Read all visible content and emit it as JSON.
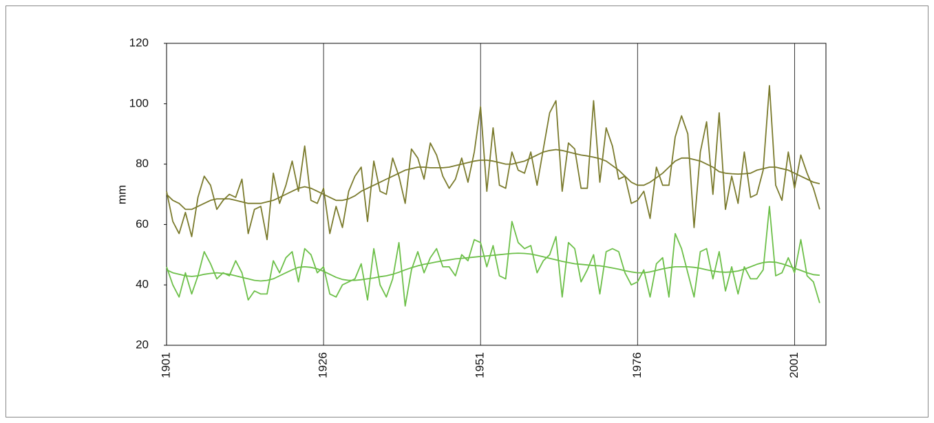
{
  "chart_data": {
    "type": "line",
    "ylabel": "mm",
    "x": [
      1901,
      1902,
      1903,
      1904,
      1905,
      1906,
      1907,
      1908,
      1909,
      1910,
      1911,
      1912,
      1913,
      1914,
      1915,
      1916,
      1917,
      1918,
      1919,
      1920,
      1921,
      1922,
      1923,
      1924,
      1925,
      1926,
      1927,
      1928,
      1929,
      1930,
      1931,
      1932,
      1933,
      1934,
      1935,
      1936,
      1937,
      1938,
      1939,
      1940,
      1941,
      1942,
      1943,
      1944,
      1945,
      1946,
      1947,
      1948,
      1949,
      1950,
      1951,
      1952,
      1953,
      1954,
      1955,
      1956,
      1957,
      1958,
      1959,
      1960,
      1961,
      1962,
      1963,
      1964,
      1965,
      1966,
      1967,
      1968,
      1969,
      1970,
      1971,
      1972,
      1973,
      1974,
      1975,
      1976,
      1977,
      1978,
      1979,
      1980,
      1981,
      1982,
      1983,
      1984,
      1985,
      1986,
      1987,
      1988,
      1989,
      1990,
      1991,
      1992,
      1993,
      1994,
      1995,
      1996,
      1997,
      1998,
      1999,
      2000,
      2001,
      2002,
      2003,
      2004,
      2005
    ],
    "series": [
      {
        "color": "#7a7a2c",
        "values": [
          71,
          61,
          57,
          64,
          56,
          69,
          76,
          73,
          65,
          68,
          70,
          69,
          75,
          57,
          65,
          66,
          55,
          77,
          67,
          73,
          81,
          71,
          86,
          68,
          67,
          72,
          57,
          66,
          59,
          71,
          76,
          79,
          61,
          81,
          71,
          70,
          82,
          76,
          67,
          85,
          82,
          75,
          87,
          83,
          76,
          72,
          75,
          82,
          74,
          84,
          99,
          71,
          92,
          73,
          72,
          84,
          78,
          77,
          84,
          73,
          85,
          97,
          101,
          71,
          87,
          85,
          72,
          72,
          101,
          74,
          92,
          86,
          75,
          76,
          67,
          68,
          71,
          62,
          79,
          73,
          73,
          89,
          96,
          90,
          59,
          84,
          94,
          70,
          97,
          65,
          76,
          67,
          84,
          69,
          70,
          78,
          106,
          73,
          68,
          84,
          72,
          83,
          77,
          72,
          65
        ]
      },
      {
        "color": "#7a7a2c",
        "values": [
          70,
          68,
          67,
          65,
          65,
          66,
          67,
          68,
          68.5,
          68.5,
          68.5,
          68,
          67.5,
          67,
          67,
          67,
          67.5,
          68,
          69,
          70,
          71,
          72,
          72.5,
          72,
          71,
          70,
          69,
          68,
          68,
          68.5,
          69.5,
          71,
          72,
          73,
          74,
          75,
          76,
          77,
          78,
          78.5,
          79,
          79,
          78.8,
          78.8,
          78.8,
          79,
          79.5,
          80,
          80.5,
          81,
          81.3,
          81.3,
          81,
          80.5,
          80,
          80,
          80.5,
          81,
          82,
          83,
          84,
          84.5,
          84.8,
          84.5,
          84,
          83.5,
          83,
          82.7,
          82.3,
          81.8,
          81,
          79.5,
          78,
          76,
          74,
          73,
          73,
          74,
          75.5,
          77,
          79,
          81,
          82,
          82,
          81.5,
          81,
          80,
          79,
          77.5,
          77,
          76.8,
          76.7,
          76.8,
          77,
          78,
          78.5,
          79,
          79,
          78.5,
          78,
          77,
          76,
          75,
          74,
          73.5
        ]
      },
      {
        "color": "#6cbf48",
        "values": [
          46,
          40,
          36,
          44,
          37,
          43,
          51,
          47,
          42,
          44,
          43,
          48,
          44,
          35,
          38,
          37,
          37,
          48,
          44,
          49,
          51,
          41,
          52,
          50,
          44,
          46,
          37,
          36,
          40,
          41,
          42,
          47,
          35,
          52,
          40,
          36,
          42,
          54,
          33,
          45,
          51,
          44,
          49,
          52,
          46,
          46,
          43,
          50,
          48,
          55,
          54,
          46,
          53,
          43,
          42,
          61,
          54,
          52,
          53,
          44,
          48,
          50,
          56,
          36,
          54,
          52,
          41,
          45,
          50,
          37,
          51,
          52,
          51,
          44,
          40,
          41,
          45,
          36,
          47,
          49,
          36,
          57,
          52,
          44,
          36,
          51,
          52,
          42,
          51,
          38,
          46,
          37,
          46,
          42,
          42,
          45,
          66,
          43,
          44,
          49,
          44,
          55,
          43,
          41,
          34
        ]
      },
      {
        "color": "#6cbf48",
        "values": [
          45,
          44,
          43.5,
          43,
          42.8,
          43,
          43.5,
          43.8,
          44,
          43.8,
          43.5,
          43,
          42.5,
          42,
          41.5,
          41.3,
          41.5,
          42,
          43,
          44,
          45,
          45.8,
          46,
          45.8,
          45.3,
          44.5,
          43.5,
          42.5,
          41.8,
          41.5,
          41.5,
          41.7,
          42,
          42.3,
          42.7,
          43,
          43.5,
          44.2,
          45,
          45.7,
          46.3,
          46.8,
          47.2,
          47.6,
          48,
          48.3,
          48.6,
          48.8,
          49,
          49.2,
          49.4,
          49.6,
          49.8,
          50,
          50.2,
          50.4,
          50.5,
          50.4,
          50.2,
          49.8,
          49.3,
          48.8,
          48.3,
          47.8,
          47.4,
          47,
          46.8,
          46.6,
          46.4,
          46.3,
          46,
          45.6,
          45.2,
          44.7,
          44.3,
          44,
          44,
          44.3,
          44.8,
          45.3,
          45.7,
          46,
          46,
          46,
          45.8,
          45.5,
          45,
          44.6,
          44.3,
          44.2,
          44.3,
          44.6,
          45.2,
          46,
          46.8,
          47.4,
          47.6,
          47.5,
          47,
          46.3,
          45.5,
          44.8,
          44,
          43.4,
          43.2
        ]
      }
    ],
    "xlim": [
      1901,
      2006
    ],
    "xticks": [
      1901,
      1926,
      1951,
      1976,
      2001
    ],
    "ylim": [
      20,
      120
    ],
    "yticks": [
      20,
      40,
      60,
      80,
      100,
      120
    ],
    "grid": "x"
  }
}
